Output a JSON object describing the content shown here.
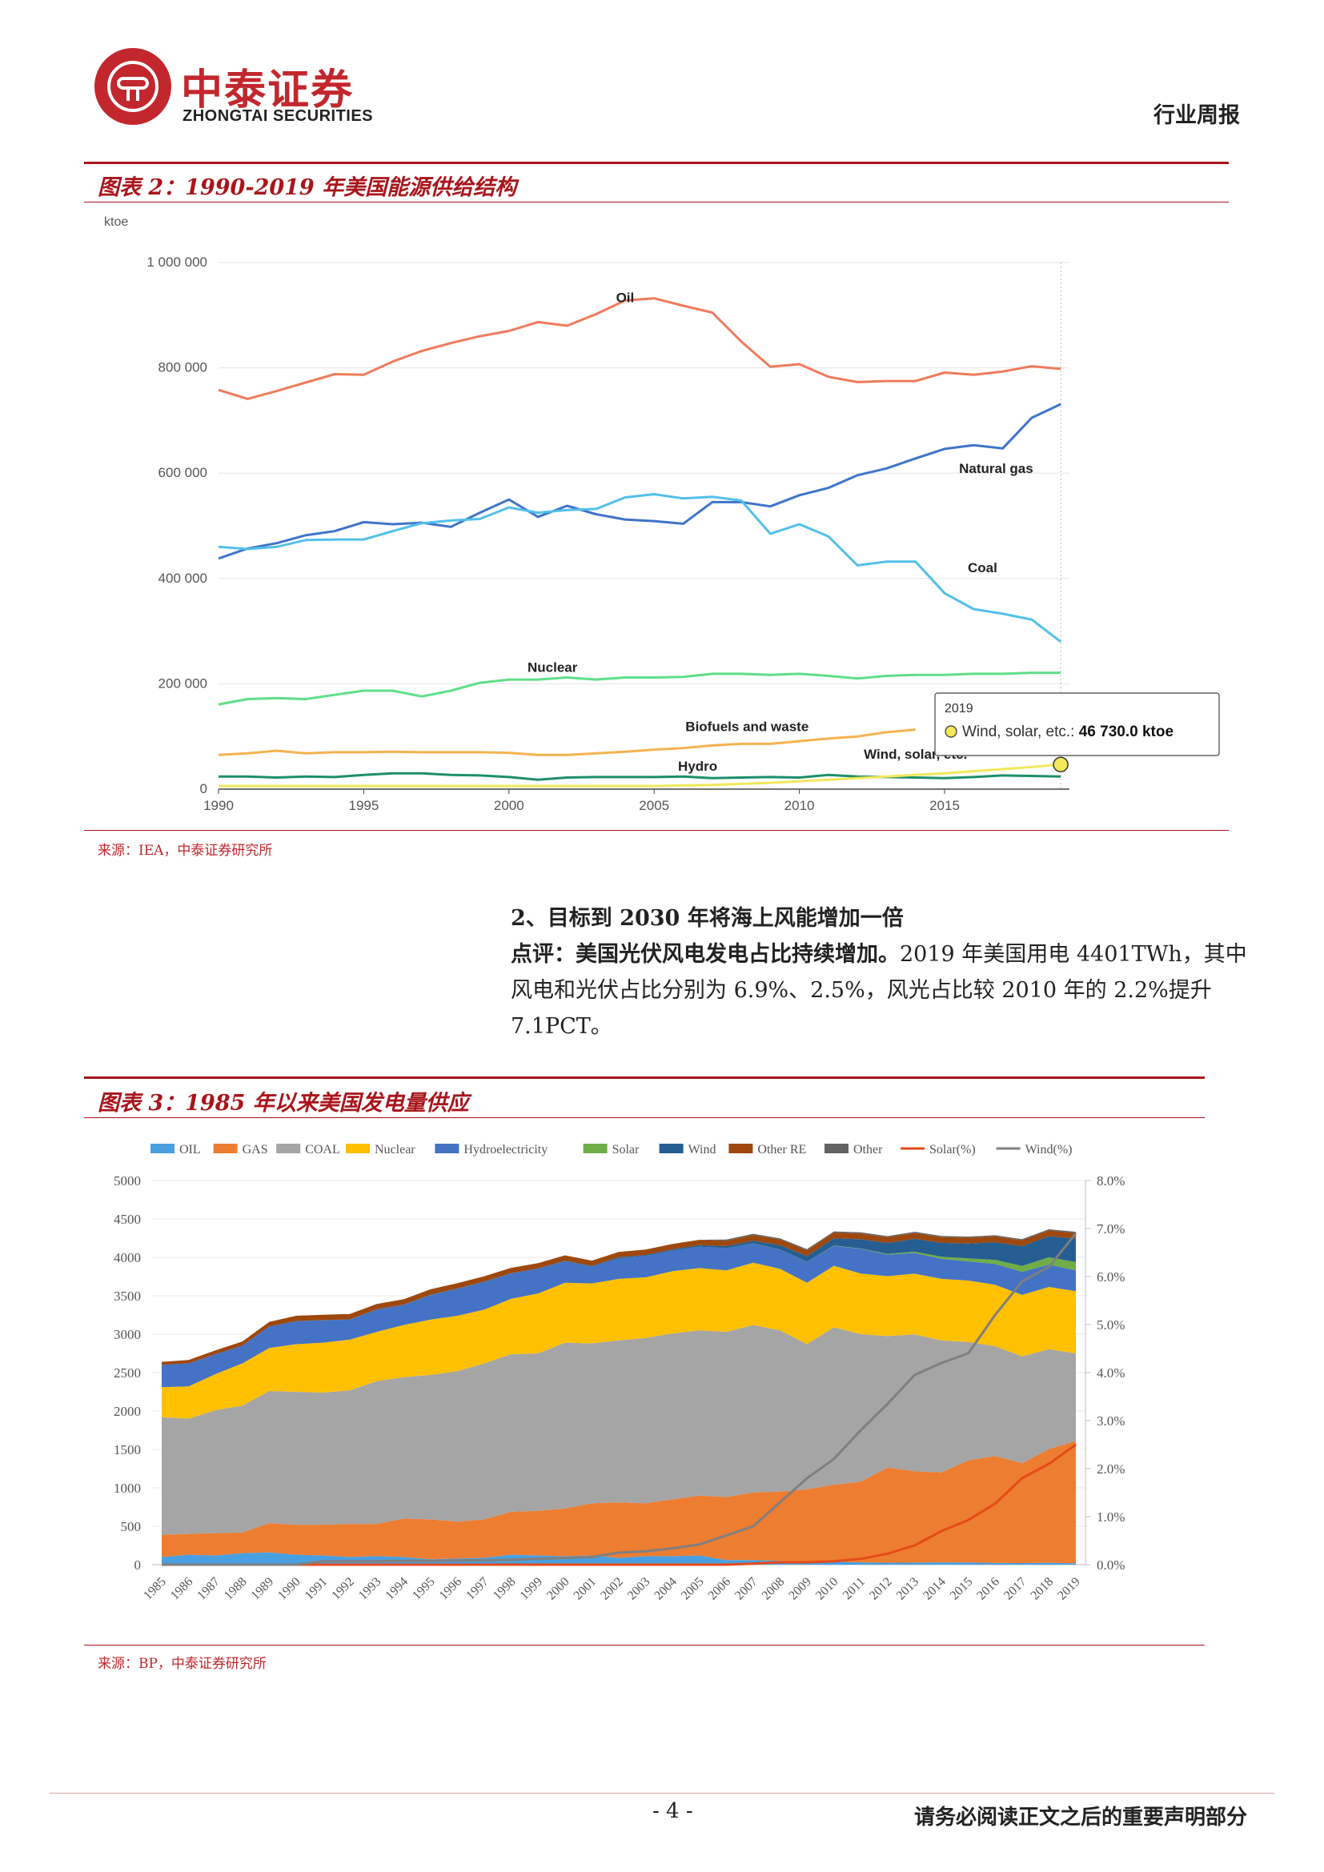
{
  "header": {
    "brand_cn": "中泰证券",
    "brand_en": "ZHONGTAI SECURITIES",
    "report_type": "行业周报"
  },
  "figure2": {
    "title": "图表 2：1990-2019 年美国能源供给结构",
    "source": "来源：IEA，中泰证券研究所",
    "chart_data": {
      "type": "line",
      "ylabel": "ktoe",
      "ylim": [
        0,
        1000000
      ],
      "yticks": [
        "1 000 000",
        "800 000",
        "600 000",
        "400 000",
        "200 000",
        "0"
      ],
      "xticks": [
        "1990",
        "1995",
        "2000",
        "2005",
        "2010",
        "2015"
      ],
      "x": [
        1990,
        1991,
        1992,
        1993,
        1994,
        1995,
        1996,
        1997,
        1998,
        1999,
        2000,
        2001,
        2002,
        2003,
        2004,
        2005,
        2006,
        2007,
        2008,
        2009,
        2010,
        2011,
        2012,
        2013,
        2014,
        2015,
        2016,
        2017,
        2018,
        2019
      ],
      "series": [
        {
          "name": "Oil",
          "color": "#ef7b5c",
          "values": [
            758000,
            741000,
            756000,
            772000,
            788000,
            787000,
            812000,
            832000,
            847000,
            860000,
            870000,
            887000,
            880000,
            902000,
            928000,
            932000,
            918000,
            905000,
            850000,
            802000,
            807000,
            783000,
            773000,
            775000,
            775000,
            791000,
            787000,
            793000,
            803000,
            798000
          ]
        },
        {
          "name": "Natural gas",
          "color": "#3f74c9",
          "values": [
            438000,
            457000,
            467000,
            482000,
            490000,
            507000,
            503000,
            506000,
            498000,
            525000,
            550000,
            517000,
            538000,
            522000,
            512000,
            509000,
            504000,
            545000,
            545000,
            537000,
            558000,
            572000,
            596000,
            609000,
            628000,
            646000,
            653000,
            647000,
            705000,
            731000
          ]
        },
        {
          "name": "Coal",
          "color": "#52c0ea",
          "values": [
            460000,
            456000,
            460000,
            473000,
            474000,
            474000,
            490000,
            505000,
            510000,
            513000,
            535000,
            525000,
            530000,
            532000,
            554000,
            560000,
            552000,
            555000,
            548000,
            485000,
            503000,
            480000,
            425000,
            432000,
            432000,
            372000,
            342000,
            333000,
            322000,
            280000
          ]
        },
        {
          "name": "Nuclear",
          "color": "#5fde87",
          "values": [
            161000,
            171000,
            173000,
            171000,
            179000,
            187000,
            187000,
            176000,
            187000,
            202000,
            208000,
            208000,
            212000,
            208000,
            212000,
            212000,
            213000,
            219000,
            219000,
            217000,
            219000,
            215000,
            210000,
            215000,
            217000,
            217000,
            219000,
            219000,
            221000,
            221000
          ]
        },
        {
          "name": "Biofuels and waste",
          "color": "#f6b24f",
          "values": [
            65000,
            68000,
            73000,
            68000,
            70000,
            70000,
            71000,
            70000,
            70000,
            70000,
            69000,
            65000,
            65000,
            68000,
            71000,
            75000,
            78000,
            83000,
            86000,
            86000,
            91000,
            96000,
            100000,
            108000,
            113000,
            0,
            0,
            0,
            0,
            0
          ]
        },
        {
          "name": "Hydro",
          "color": "#1c8f6b",
          "values": [
            24000,
            24000,
            22000,
            24000,
            23000,
            27000,
            30000,
            30000,
            27000,
            26000,
            23000,
            18000,
            22000,
            23000,
            23000,
            23000,
            24000,
            21000,
            22000,
            23000,
            22000,
            27000,
            24000,
            23000,
            22000,
            21000,
            23000,
            26000,
            25000,
            24000
          ]
        },
        {
          "name": "Wind, solar, etc.",
          "color": "#f2e85b",
          "values": [
            6000,
            6000,
            6000,
            6000,
            6000,
            6000,
            6000,
            6000,
            6000,
            6000,
            6000,
            6000,
            6000,
            6000,
            6000,
            6000,
            7000,
            8000,
            10000,
            12000,
            15000,
            18000,
            21000,
            24000,
            27000,
            30000,
            34000,
            38000,
            42000,
            46730
          ]
        }
      ],
      "tooltip": {
        "year": "2019",
        "label": "Wind, solar, etc.:",
        "value": "46 730.0 ktoe"
      }
    }
  },
  "section": {
    "heading": "2、目标到 2030 年将海上风能增加一倍",
    "comment_bold": "点评：美国光伏风电发电占比持续增加。",
    "comment_text": "2019 年美国用电 4401TWh，其中风电和光伏占比分别为 6.9%、2.5%，风光占比较 2010 年的 2.2%提升 7.1PCT。"
  },
  "figure3": {
    "title": "图表 3：1985 年以来美国发电量供应",
    "source": "来源：BP，中泰证券研究所",
    "chart_data": {
      "type": "area",
      "ylim": [
        0,
        5000
      ],
      "y2lim": [
        0,
        8
      ],
      "yticks": [
        "5000",
        "4500",
        "4000",
        "3500",
        "3000",
        "2500",
        "2000",
        "1500",
        "1000",
        "500",
        "0"
      ],
      "y2ticks": [
        "8.0%",
        "7.0%",
        "6.0%",
        "5.0%",
        "4.0%",
        "3.0%",
        "2.0%",
        "1.0%",
        "0.0%"
      ],
      "categories": [
        "1985",
        "1986",
        "1987",
        "1988",
        "1989",
        "1990",
        "1991",
        "1992",
        "1993",
        "1994",
        "1995",
        "1996",
        "1997",
        "1998",
        "1999",
        "2000",
        "2001",
        "2002",
        "2003",
        "2004",
        "2005",
        "2006",
        "2007",
        "2008",
        "2009",
        "2010",
        "2011",
        "2012",
        "2013",
        "2014",
        "2015",
        "2016",
        "2017",
        "2018",
        "2019"
      ],
      "stack_series": [
        {
          "name": "OIL",
          "color": "#4a9fe0",
          "values": [
            100,
            130,
            120,
            150,
            160,
            130,
            120,
            100,
            110,
            100,
            70,
            80,
            90,
            130,
            120,
            110,
            120,
            90,
            110,
            110,
            120,
            60,
            60,
            50,
            40,
            40,
            30,
            25,
            27,
            30,
            28,
            24,
            21,
            25,
            19
          ]
        },
        {
          "name": "GAS",
          "color": "#ed7d31",
          "values": [
            290,
            270,
            290,
            270,
            380,
            390,
            400,
            430,
            420,
            500,
            520,
            480,
            500,
            560,
            580,
            620,
            680,
            720,
            690,
            740,
            780,
            820,
            880,
            900,
            940,
            1000,
            1050,
            1240,
            1190,
            1170,
            1330,
            1390,
            1300,
            1480,
            1590
          ]
        },
        {
          "name": "COAL",
          "color": "#a5a5a5",
          "values": [
            1530,
            1500,
            1600,
            1650,
            1720,
            1730,
            1720,
            1740,
            1860,
            1840,
            1880,
            1960,
            2030,
            2050,
            2050,
            2160,
            2080,
            2110,
            2150,
            2160,
            2150,
            2150,
            2180,
            2100,
            1890,
            2050,
            1920,
            1710,
            1780,
            1720,
            1540,
            1430,
            1390,
            1300,
            1140
          ]
        },
        {
          "name": "Nuclear",
          "color": "#ffc000",
          "values": [
            390,
            420,
            470,
            550,
            560,
            620,
            650,
            660,
            640,
            680,
            720,
            720,
            700,
            720,
            780,
            780,
            780,
            800,
            790,
            810,
            810,
            800,
            810,
            800,
            800,
            800,
            790,
            780,
            790,
            800,
            800,
            800,
            800,
            810,
            810
          ]
        },
        {
          "name": "Hydroelectricity",
          "color": "#4472c4",
          "values": [
            290,
            300,
            260,
            230,
            280,
            300,
            290,
            260,
            290,
            260,
            320,
            350,
            360,
            330,
            320,
            280,
            220,
            270,
            280,
            270,
            280,
            290,
            250,
            250,
            270,
            260,
            320,
            280,
            270,
            260,
            250,
            270,
            300,
            290,
            270
          ]
        },
        {
          "name": "Solar",
          "color": "#70ad47",
          "values": [
            0,
            0,
            0,
            0,
            0,
            0,
            0,
            0,
            0,
            0,
            0,
            0,
            0,
            0,
            0,
            0,
            0,
            0,
            0,
            0,
            0,
            0,
            1,
            2,
            2,
            3,
            5,
            10,
            17,
            27,
            39,
            54,
            78,
            96,
            110
          ]
        },
        {
          "name": "Wind",
          "color": "#255e91",
          "values": [
            0,
            0,
            0,
            0,
            0,
            0,
            3,
            3,
            3,
            4,
            4,
            4,
            4,
            4,
            5,
            6,
            7,
            11,
            11,
            14,
            18,
            27,
            35,
            56,
            74,
            95,
            120,
            141,
            168,
            182,
            193,
            229,
            257,
            275,
            303
          ]
        },
        {
          "name": "Other RE",
          "color": "#9e480e",
          "values": [
            40,
            45,
            50,
            55,
            60,
            70,
            70,
            70,
            70,
            70,
            70,
            70,
            70,
            70,
            70,
            70,
            70,
            70,
            70,
            70,
            70,
            70,
            75,
            75,
            75,
            75,
            75,
            75,
            75,
            75,
            75,
            75,
            75,
            75,
            75
          ]
        },
        {
          "name": "Other",
          "color": "#636363",
          "values": [
            0,
            0,
            0,
            0,
            0,
            0,
            0,
            0,
            0,
            0,
            0,
            0,
            0,
            0,
            0,
            0,
            0,
            0,
            0,
            0,
            0,
            15,
            15,
            15,
            15,
            15,
            15,
            15,
            15,
            15,
            15,
            15,
            15,
            15,
            15
          ]
        }
      ],
      "line_series": [
        {
          "name": "Solar(%)",
          "color": "#e64a19",
          "axis": "y2",
          "values": [
            0,
            0,
            0,
            0,
            0,
            0,
            0,
            0,
            0,
            0,
            0,
            0,
            0,
            0,
            0,
            0,
            0,
            0,
            0,
            0,
            0,
            0,
            0.02,
            0.05,
            0.05,
            0.07,
            0.12,
            0.23,
            0.4,
            0.7,
            0.93,
            1.27,
            1.8,
            2.1,
            2.5
          ]
        },
        {
          "name": "Wind(%)",
          "color": "#7f7f7f",
          "axis": "y2",
          "values": [
            0,
            0,
            0,
            0,
            0,
            0,
            0.07,
            0.07,
            0.07,
            0.08,
            0.08,
            0.09,
            0.09,
            0.1,
            0.12,
            0.14,
            0.16,
            0.25,
            0.28,
            0.34,
            0.42,
            0.61,
            0.8,
            1.3,
            1.8,
            2.2,
            2.8,
            3.35,
            3.95,
            4.2,
            4.4,
            5.2,
            5.9,
            6.2,
            6.9
          ]
        }
      ]
    }
  }
}
